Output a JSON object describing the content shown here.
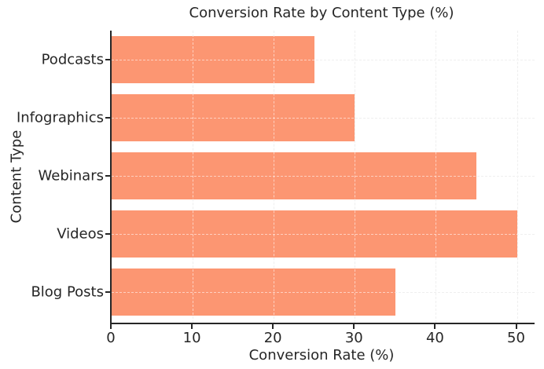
{
  "chart_data": {
    "type": "bar",
    "orientation": "horizontal",
    "title": "Conversion Rate by Content Type (%)",
    "xlabel": "Conversion Rate (%)",
    "ylabel": "Content Type",
    "categories": [
      "Podcasts",
      "Infographics",
      "Webinars",
      "Videos",
      "Blog Posts"
    ],
    "values": [
      25,
      30,
      45,
      50,
      35
    ],
    "xticks": [
      0,
      10,
      20,
      30,
      40,
      50
    ],
    "xlim": [
      0,
      52.2
    ],
    "grid": "dashed, both axes, drawn over bars",
    "legend_position": "none",
    "bar_color": "#FC9672",
    "axis_color": "#262626",
    "grid_color": "#dcdcdc",
    "background_color": "#ffffff"
  }
}
